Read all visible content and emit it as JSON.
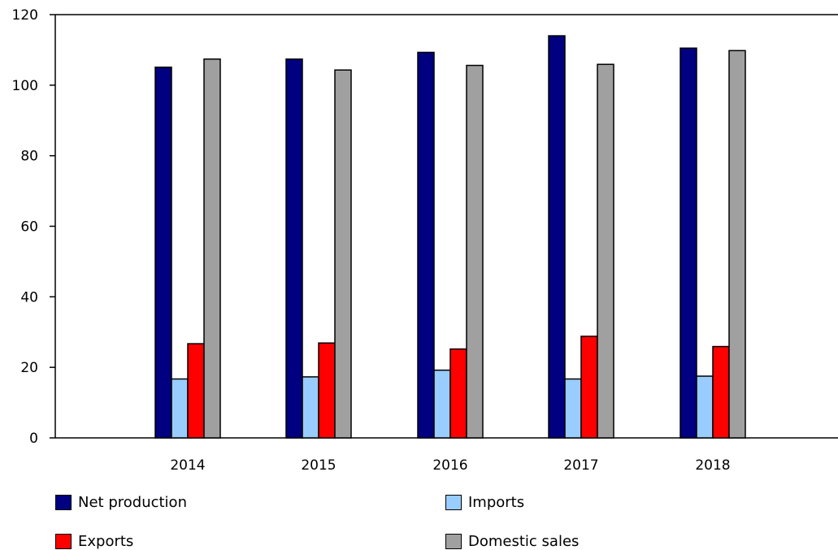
{
  "chart_data": {
    "type": "bar",
    "categories": [
      "2014",
      "2015",
      "2016",
      "2017",
      "2018"
    ],
    "series": [
      {
        "name": "Net production",
        "color": "#000080",
        "values": [
          105.1,
          107.4,
          109.3,
          114.0,
          110.5
        ]
      },
      {
        "name": "Imports",
        "color": "#99ccff",
        "values": [
          16.7,
          17.3,
          19.2,
          16.7,
          17.5
        ]
      },
      {
        "name": "Exports",
        "color": "#ff0000",
        "values": [
          26.7,
          26.9,
          25.2,
          28.8,
          25.9
        ]
      },
      {
        "name": "Domestic sales",
        "color": "#a0a0a0",
        "values": [
          107.4,
          104.3,
          105.6,
          105.9,
          109.8
        ]
      }
    ],
    "ylim": [
      0,
      120
    ],
    "yticks": [
      "0",
      "20",
      "40",
      "60",
      "80",
      "100",
      "120"
    ],
    "title": "",
    "xlabel": "",
    "ylabel": "",
    "grid": false,
    "legend_position": "bottom"
  }
}
